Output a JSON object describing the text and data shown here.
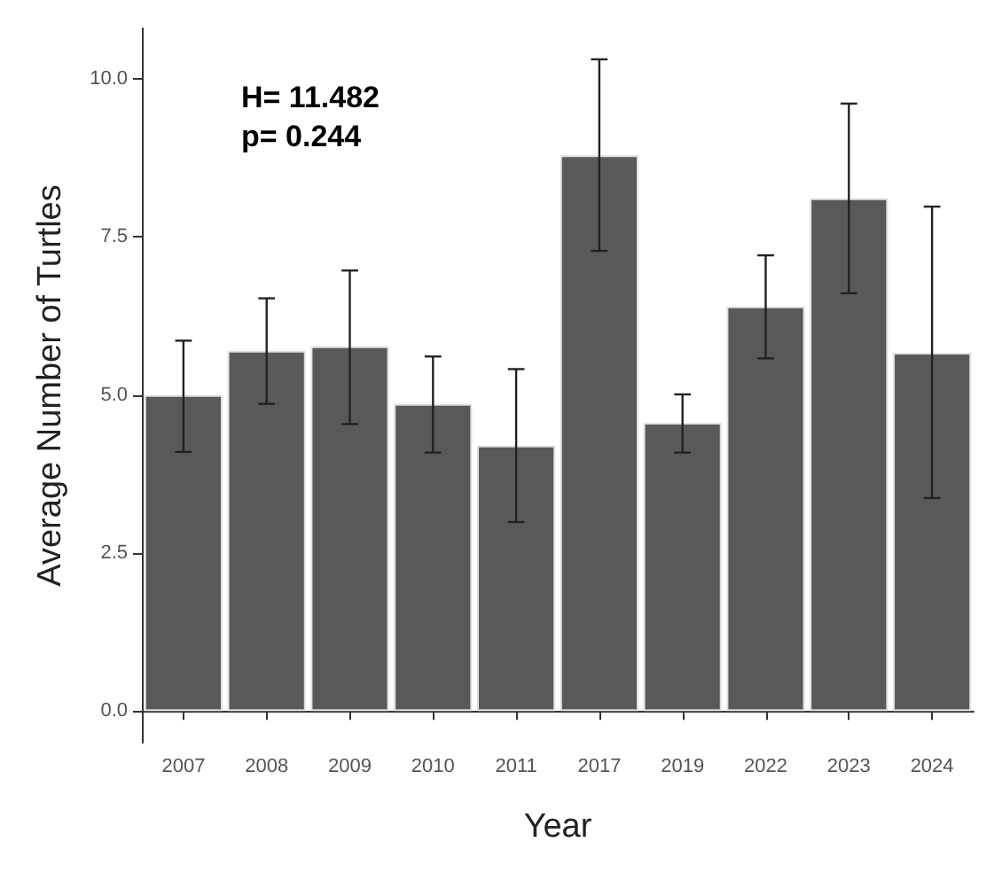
{
  "chart_data": {
    "type": "bar",
    "xlabel": "Year",
    "ylabel": "Average Number of Turtles",
    "annotations": [
      "H= 11.482",
      "p= 0.244"
    ],
    "categories": [
      "2007",
      "2008",
      "2009",
      "2010",
      "2011",
      "2017",
      "2019",
      "2022",
      "2023",
      "2024"
    ],
    "values": [
      5.0,
      5.7,
      5.77,
      4.86,
      4.2,
      8.79,
      4.56,
      6.4,
      8.11,
      5.67
    ],
    "errors": [
      [
        4.1,
        5.86
      ],
      [
        4.86,
        6.53
      ],
      [
        4.54,
        6.97
      ],
      [
        4.09,
        5.61
      ],
      [
        2.99,
        5.41
      ],
      [
        7.28,
        10.31
      ],
      [
        4.09,
        5.01
      ],
      [
        5.58,
        7.21
      ],
      [
        6.61,
        9.61
      ],
      [
        3.37,
        7.98
      ]
    ],
    "color": "#595959",
    "ylim": [
      -0.5,
      10.8
    ],
    "yticks": [
      {
        "value": 0,
        "label": "0.0"
      },
      {
        "value": 2.5,
        "label": "2.5"
      },
      {
        "value": 5,
        "label": "5.0"
      },
      {
        "value": 7.5,
        "label": "7.5"
      },
      {
        "value": 10,
        "label": "10.0"
      }
    ],
    "grid": false
  }
}
